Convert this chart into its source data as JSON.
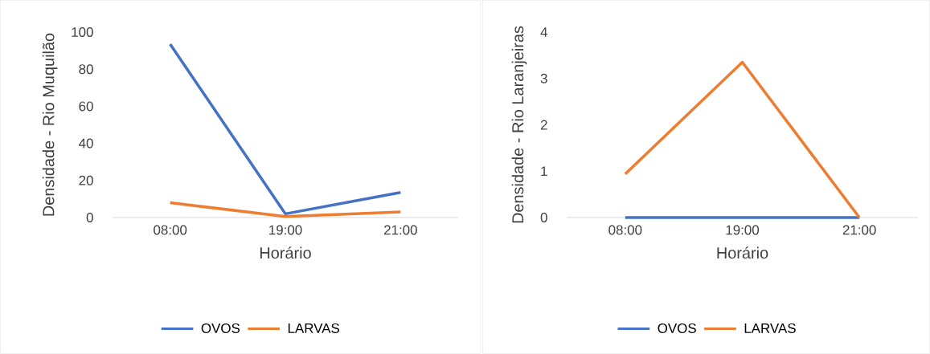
{
  "chart_data": [
    {
      "type": "line",
      "xlabel": "Horário",
      "ylabel": "Densidade - Rio Muquilão",
      "categories": [
        "08:00",
        "19:00",
        "21:00"
      ],
      "series": [
        {
          "name": "OVOS",
          "color": "#4472c4",
          "values": [
            93.5,
            2,
            13.5
          ]
        },
        {
          "name": "LARVAS",
          "color": "#ed7d31",
          "values": [
            8,
            0.5,
            3
          ]
        }
      ],
      "ylim": [
        0,
        100
      ],
      "yticks": [
        0,
        20,
        40,
        60,
        80,
        100
      ],
      "legend": "bottom",
      "marker": "none",
      "line_style": "solid"
    },
    {
      "type": "line",
      "xlabel": "Horário",
      "ylabel": "Densidade - Rio Laranjeiras",
      "categories": [
        "08:00",
        "19:00",
        "21:00"
      ],
      "series": [
        {
          "name": "OVOS",
          "color": "#4472c4",
          "values": [
            0,
            0,
            0
          ]
        },
        {
          "name": "LARVAS",
          "color": "#ed7d31",
          "values": [
            0.94,
            3.35,
            0
          ]
        }
      ],
      "ylim": [
        0,
        4
      ],
      "yticks": [
        0,
        1,
        2,
        3,
        4
      ],
      "legend": "bottom",
      "marker": "none",
      "line_style": "solid"
    }
  ]
}
